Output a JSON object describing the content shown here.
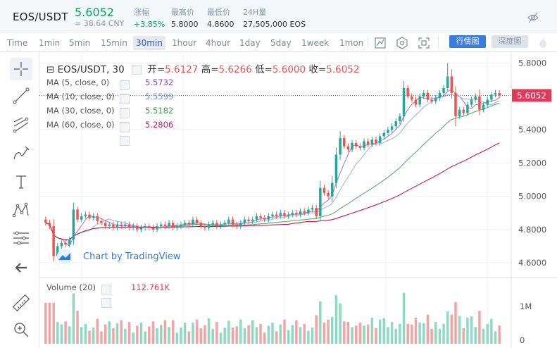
{
  "header": {
    "pair": "EOS/USDT",
    "price": "5.6052",
    "cny": "≈ 38.64 CNY",
    "stats": [
      {
        "label": "涨幅",
        "value": "+3.85%",
        "color": "#00a65a"
      },
      {
        "label": "最高价",
        "value": "5.8000",
        "color": "#333333"
      },
      {
        "label": "最低价",
        "value": "4.8600",
        "color": "#333333"
      },
      {
        "label": "24H量",
        "value": "27,505,000 EOS",
        "color": "#333333"
      }
    ],
    "icon": "no-eye-icon"
  },
  "toolbar": {
    "timeframes": [
      "Time",
      "1min",
      "5min",
      "15min",
      "30min",
      "1hour",
      "4hour",
      "1day",
      "5day",
      "1week",
      "1mon"
    ],
    "active_timeframe": "30min",
    "icons": [
      "indicator-icon",
      "settings-icon",
      "screenshot-icon"
    ],
    "kline_label": "行情图",
    "depth_label": "深度图",
    "fire_icon": "fire-icon"
  },
  "left_tools": [
    "crosshair-icon",
    "trendline-icon",
    "fib-icon",
    "brush-icon",
    "text-icon",
    "pattern-icon",
    "measure-icon",
    "back-arrow-icon",
    "ruler-icon",
    "zoom-icon"
  ],
  "legend": {
    "symbol": "EOS/USDT, 30",
    "open_label": "开=",
    "open": "5.6127",
    "high_label": "高=",
    "high": "5.6266",
    "low_label": "低=",
    "low": "5.6000",
    "close_label": "收=",
    "close": "5.6052",
    "mas": [
      {
        "label": "MA (5, close, 0)",
        "value": "5.5732",
        "color": "#8e44ad"
      },
      {
        "label": "MA (10, close, 0)",
        "value": "5.5599",
        "color": "#7f9fd6"
      },
      {
        "label": "MA (30, close, 0)",
        "value": "5.5182",
        "color": "#4caf50"
      },
      {
        "label": "MA (60, close, 0)",
        "value": "5.2806",
        "color": "#c2185b"
      }
    ],
    "volume_label": "Volume (20)",
    "volume_value": "112.761K"
  },
  "watermark": "Chart by TradingView",
  "price_axis": {
    "ticks": [
      "5.8000",
      "5.6000",
      "5.4000",
      "5.2000",
      "5.0000",
      "4.8000",
      "4.6000"
    ],
    "last_price": "5.6052",
    "last_price_color": "#e0395a"
  },
  "volume_axis": {
    "ticks": [
      "1M",
      "0"
    ]
  },
  "colors": {
    "up": "#26a69a",
    "down": "#ef5350",
    "up_fill": "#8fd9c2",
    "down_fill": "#f4a3a3"
  },
  "chart_data": {
    "type": "candlestick",
    "title": "EOS/USDT, 30",
    "ylim": [
      4.52,
      5.84
    ],
    "close_series": [
      4.84,
      4.82,
      4.64,
      4.7,
      4.72,
      4.71,
      4.74,
      4.92,
      4.86,
      4.88,
      4.89,
      4.87,
      4.88,
      4.85,
      4.84,
      4.82,
      4.83,
      4.81,
      4.83,
      4.82,
      4.83,
      4.81,
      4.82,
      4.8,
      4.81,
      4.82,
      4.81,
      4.8,
      4.82,
      4.83,
      4.82,
      4.84,
      4.81,
      4.82,
      4.83,
      4.84,
      4.83,
      4.86,
      4.84,
      4.82,
      4.81,
      4.83,
      4.84,
      4.82,
      4.83,
      4.84,
      4.86,
      4.83,
      4.82,
      4.84,
      4.86,
      4.85,
      4.86,
      4.88,
      4.87,
      4.86,
      4.88,
      4.89,
      4.88,
      4.9,
      4.88,
      4.89,
      4.9,
      4.89,
      4.91,
      4.9,
      4.92,
      4.93,
      4.88,
      5.05,
      5.02,
      5.0,
      5.08,
      5.25,
      5.35,
      5.3,
      5.28,
      5.32,
      5.3,
      5.29,
      5.33,
      5.31,
      5.34,
      5.32,
      5.36,
      5.38,
      5.4,
      5.42,
      5.45,
      5.48,
      5.65,
      5.6,
      5.58,
      5.55,
      5.6,
      5.62,
      5.58,
      5.57,
      5.59,
      5.62,
      5.65,
      5.72,
      5.62,
      5.48,
      5.52,
      5.5,
      5.55,
      5.58,
      5.6,
      5.52,
      5.55,
      5.58,
      5.61,
      5.62,
      5.6052
    ]
  }
}
